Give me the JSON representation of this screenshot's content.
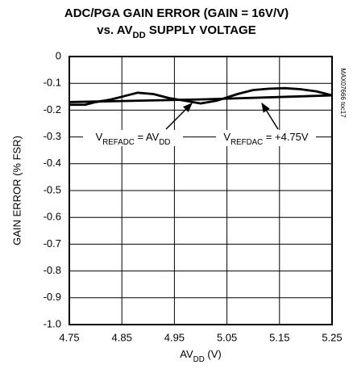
{
  "chart_data": {
    "type": "line",
    "title": [
      [
        "ADC/PGA GAIN ERROR (GAIN = 16V/V)"
      ],
      [
        "vs. AV",
        "DD",
        " SUPPLY VOLTAGE"
      ]
    ],
    "xlabel": [
      "AV",
      "DD",
      " (V)"
    ],
    "ylabel": "GAIN ERROR (% FSR)",
    "side_note": "MAX07666 toc17",
    "annotations": [
      [
        "V",
        "REFADC",
        " = AV",
        "DD"
      ],
      [
        "V",
        "REFDAC",
        " = +4.75V"
      ]
    ],
    "xlim": [
      4.75,
      5.25
    ],
    "xticks": [
      4.75,
      4.85,
      4.95,
      5.05,
      5.15,
      5.25
    ],
    "ylim": [
      -1,
      0
    ],
    "yticks": [
      0,
      -0.1,
      -0.2,
      -0.3,
      -0.4,
      -0.5,
      -0.6,
      -0.7,
      -0.8,
      -0.9,
      {
        "value": -1,
        "label": "-1.0"
      }
    ],
    "grid": true,
    "series": [
      {
        "color": "#000000",
        "x": [
          4.75,
          4.78,
          4.8,
          4.83,
          4.85,
          4.88,
          4.91,
          4.94,
          4.97,
          5.0,
          5.03,
          5.07,
          5.1,
          5.13,
          5.16,
          5.19,
          5.22,
          5.25
        ],
        "values": [
          -0.18,
          -0.18,
          -0.17,
          -0.16,
          -0.15,
          -0.135,
          -0.14,
          -0.155,
          -0.165,
          -0.175,
          -0.165,
          -0.14,
          -0.125,
          -0.12,
          -0.118,
          -0.122,
          -0.13,
          -0.145
        ]
      },
      {
        "color": "#000000",
        "x": [
          4.75,
          5.0,
          5.25
        ],
        "values": [
          -0.17,
          -0.16,
          -0.145
        ]
      }
    ]
  }
}
